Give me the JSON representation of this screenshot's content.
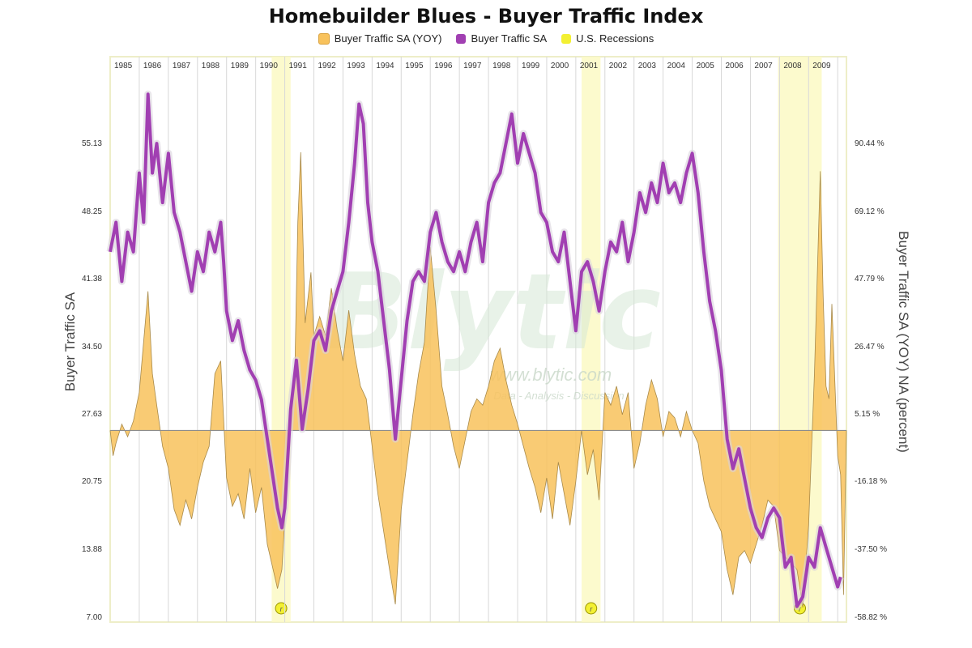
{
  "title": "Homebuilder Blues - Buyer Traffic Index",
  "legend": [
    {
      "label": "Buyer Traffic SA (YOY)",
      "color": "#f8c25c"
    },
    {
      "label": "Buyer Traffic SA",
      "color": "#a13fb2"
    },
    {
      "label": "U.S. Recessions",
      "color": "#f3f032"
    }
  ],
  "watermark": {
    "brand": "Blytic",
    "url": "www.blytic.com",
    "tagline": "Data - Analysis - Discussion"
  },
  "recession_marker": "r",
  "chart_data": {
    "type": "line",
    "title": "Homebuilder Blues - Buyer Traffic Index",
    "x_years": [
      "1985",
      "1986",
      "1987",
      "1988",
      "1989",
      "1990",
      "1991",
      "1992",
      "1993",
      "1994",
      "1995",
      "1996",
      "1997",
      "1998",
      "1999",
      "2000",
      "2001",
      "2002",
      "2003",
      "2004",
      "2005",
      "2006",
      "2007",
      "2008",
      "2009"
    ],
    "xlim": [
      1985,
      2010.3
    ],
    "left_axis": {
      "label": "Buyer Traffic SA",
      "ticks": [
        "55.13",
        "48.25",
        "41.38",
        "34.50",
        "27.63",
        "20.75",
        "13.88",
        "7.00"
      ],
      "ylim": [
        7.0,
        62.0
      ]
    },
    "right_axis": {
      "label": "Buyer Traffic SA (YOY) NA (percent)",
      "ticks": [
        "90.44 %",
        "69.12 %",
        "47.79 %",
        "26.47 %",
        "5.15 %",
        "-16.18 %",
        "-37.50 %",
        "-58.82 %"
      ],
      "ylim": [
        -58.82,
        112.6
      ]
    },
    "recessions": [
      [
        1990.55,
        1991.2
      ],
      [
        2001.2,
        2001.85
      ],
      [
        2007.95,
        2009.45
      ]
    ],
    "series": [
      {
        "name": "Buyer Traffic SA",
        "axis": "left",
        "type": "line",
        "color": "#a13fb2",
        "points": [
          [
            1985.0,
            44
          ],
          [
            1985.2,
            47
          ],
          [
            1985.4,
            41
          ],
          [
            1985.6,
            46
          ],
          [
            1985.8,
            44
          ],
          [
            1986.0,
            52
          ],
          [
            1986.15,
            47
          ],
          [
            1986.3,
            60
          ],
          [
            1986.45,
            52
          ],
          [
            1986.6,
            55
          ],
          [
            1986.8,
            49
          ],
          [
            1987.0,
            54
          ],
          [
            1987.2,
            48
          ],
          [
            1987.4,
            46
          ],
          [
            1987.6,
            43
          ],
          [
            1987.8,
            40
          ],
          [
            1988.0,
            44
          ],
          [
            1988.2,
            42
          ],
          [
            1988.4,
            46
          ],
          [
            1988.6,
            44
          ],
          [
            1988.8,
            47
          ],
          [
            1988.9,
            43
          ],
          [
            1989.0,
            38
          ],
          [
            1989.2,
            35
          ],
          [
            1989.4,
            37
          ],
          [
            1989.6,
            34
          ],
          [
            1989.8,
            32
          ],
          [
            1990.0,
            31
          ],
          [
            1990.2,
            29
          ],
          [
            1990.4,
            25
          ],
          [
            1990.6,
            21
          ],
          [
            1990.75,
            18
          ],
          [
            1990.9,
            16
          ],
          [
            1991.0,
            18
          ],
          [
            1991.2,
            28
          ],
          [
            1991.4,
            33
          ],
          [
            1991.6,
            26
          ],
          [
            1991.8,
            30
          ],
          [
            1992.0,
            35
          ],
          [
            1992.2,
            36
          ],
          [
            1992.4,
            34
          ],
          [
            1992.6,
            38
          ],
          [
            1992.8,
            40
          ],
          [
            1993.0,
            42
          ],
          [
            1993.2,
            47
          ],
          [
            1993.4,
            53
          ],
          [
            1993.55,
            59
          ],
          [
            1993.7,
            57
          ],
          [
            1993.85,
            49
          ],
          [
            1994.0,
            45
          ],
          [
            1994.2,
            42
          ],
          [
            1994.4,
            37
          ],
          [
            1994.6,
            32
          ],
          [
            1994.8,
            25
          ],
          [
            1995.0,
            31
          ],
          [
            1995.2,
            37
          ],
          [
            1995.4,
            41
          ],
          [
            1995.6,
            42
          ],
          [
            1995.8,
            41
          ],
          [
            1996.0,
            46
          ],
          [
            1996.2,
            48
          ],
          [
            1996.4,
            45
          ],
          [
            1996.6,
            43
          ],
          [
            1996.8,
            42
          ],
          [
            1997.0,
            44
          ],
          [
            1997.2,
            42
          ],
          [
            1997.4,
            45
          ],
          [
            1997.6,
            47
          ],
          [
            1997.8,
            43
          ],
          [
            1998.0,
            49
          ],
          [
            1998.2,
            51
          ],
          [
            1998.4,
            52
          ],
          [
            1998.6,
            55
          ],
          [
            1998.8,
            58
          ],
          [
            1999.0,
            53
          ],
          [
            1999.2,
            56
          ],
          [
            1999.4,
            54
          ],
          [
            1999.6,
            52
          ],
          [
            1999.8,
            48
          ],
          [
            2000.0,
            47
          ],
          [
            2000.2,
            44
          ],
          [
            2000.4,
            43
          ],
          [
            2000.6,
            46
          ],
          [
            2000.8,
            41
          ],
          [
            2001.0,
            36
          ],
          [
            2001.2,
            42
          ],
          [
            2001.4,
            43
          ],
          [
            2001.6,
            41
          ],
          [
            2001.8,
            38
          ],
          [
            2002.0,
            42
          ],
          [
            2002.2,
            45
          ],
          [
            2002.4,
            44
          ],
          [
            2002.6,
            47
          ],
          [
            2002.8,
            43
          ],
          [
            2003.0,
            46
          ],
          [
            2003.2,
            50
          ],
          [
            2003.4,
            48
          ],
          [
            2003.6,
            51
          ],
          [
            2003.8,
            49
          ],
          [
            2004.0,
            53
          ],
          [
            2004.2,
            50
          ],
          [
            2004.4,
            51
          ],
          [
            2004.6,
            49
          ],
          [
            2004.8,
            52
          ],
          [
            2005.0,
            54
          ],
          [
            2005.2,
            50
          ],
          [
            2005.4,
            44
          ],
          [
            2005.6,
            39
          ],
          [
            2005.8,
            36
          ],
          [
            2006.0,
            32
          ],
          [
            2006.2,
            25
          ],
          [
            2006.4,
            22
          ],
          [
            2006.6,
            24
          ],
          [
            2006.8,
            21
          ],
          [
            2007.0,
            18
          ],
          [
            2007.2,
            16
          ],
          [
            2007.4,
            15
          ],
          [
            2007.6,
            17
          ],
          [
            2007.8,
            18
          ],
          [
            2008.0,
            17
          ],
          [
            2008.2,
            12
          ],
          [
            2008.4,
            13
          ],
          [
            2008.6,
            8
          ],
          [
            2008.8,
            9
          ],
          [
            2009.0,
            13
          ],
          [
            2009.2,
            12
          ],
          [
            2009.4,
            16
          ],
          [
            2009.6,
            14
          ],
          [
            2009.8,
            12
          ],
          [
            2010.0,
            10
          ],
          [
            2010.1,
            11
          ]
        ]
      },
      {
        "name": "Buyer Traffic SA (YOY)",
        "axis": "right",
        "type": "area",
        "color": "#f8c25c",
        "points": [
          [
            1985.0,
            0
          ],
          [
            1985.1,
            -8
          ],
          [
            1985.2,
            -4
          ],
          [
            1985.4,
            2
          ],
          [
            1985.6,
            -2
          ],
          [
            1985.8,
            3
          ],
          [
            1986.0,
            12
          ],
          [
            1986.15,
            28
          ],
          [
            1986.3,
            44
          ],
          [
            1986.45,
            18
          ],
          [
            1986.6,
            8
          ],
          [
            1986.8,
            -5
          ],
          [
            1987.0,
            -12
          ],
          [
            1987.2,
            -25
          ],
          [
            1987.4,
            -30
          ],
          [
            1987.6,
            -22
          ],
          [
            1987.8,
            -28
          ],
          [
            1988.0,
            -18
          ],
          [
            1988.2,
            -10
          ],
          [
            1988.4,
            -5
          ],
          [
            1988.6,
            18
          ],
          [
            1988.8,
            22
          ],
          [
            1989.0,
            -15
          ],
          [
            1989.2,
            -24
          ],
          [
            1989.4,
            -20
          ],
          [
            1989.6,
            -28
          ],
          [
            1989.8,
            -12
          ],
          [
            1990.0,
            -26
          ],
          [
            1990.2,
            -18
          ],
          [
            1990.4,
            -36
          ],
          [
            1990.6,
            -44
          ],
          [
            1990.75,
            -50
          ],
          [
            1990.9,
            -44
          ],
          [
            1991.0,
            -28
          ],
          [
            1991.2,
            8
          ],
          [
            1991.35,
            20
          ],
          [
            1991.45,
            66
          ],
          [
            1991.55,
            88
          ],
          [
            1991.7,
            34
          ],
          [
            1991.9,
            50
          ],
          [
            1992.0,
            30
          ],
          [
            1992.2,
            36
          ],
          [
            1992.4,
            30
          ],
          [
            1992.6,
            45
          ],
          [
            1992.8,
            32
          ],
          [
            1993.0,
            22
          ],
          [
            1993.2,
            38
          ],
          [
            1993.4,
            24
          ],
          [
            1993.6,
            14
          ],
          [
            1993.8,
            10
          ],
          [
            1994.0,
            -5
          ],
          [
            1994.2,
            -20
          ],
          [
            1994.4,
            -32
          ],
          [
            1994.6,
            -44
          ],
          [
            1994.8,
            -55
          ],
          [
            1995.0,
            -25
          ],
          [
            1995.2,
            -10
          ],
          [
            1995.4,
            5
          ],
          [
            1995.6,
            18
          ],
          [
            1995.8,
            28
          ],
          [
            1996.0,
            58
          ],
          [
            1996.2,
            38
          ],
          [
            1996.4,
            14
          ],
          [
            1996.6,
            5
          ],
          [
            1996.8,
            -5
          ],
          [
            1997.0,
            -12
          ],
          [
            1997.2,
            -3
          ],
          [
            1997.4,
            6
          ],
          [
            1997.6,
            10
          ],
          [
            1997.8,
            8
          ],
          [
            1998.0,
            14
          ],
          [
            1998.2,
            22
          ],
          [
            1998.4,
            26
          ],
          [
            1998.6,
            16
          ],
          [
            1998.8,
            8
          ],
          [
            1999.0,
            2
          ],
          [
            1999.2,
            -5
          ],
          [
            1999.4,
            -12
          ],
          [
            1999.6,
            -18
          ],
          [
            1999.8,
            -26
          ],
          [
            2000.0,
            -15
          ],
          [
            2000.2,
            -28
          ],
          [
            2000.4,
            -10
          ],
          [
            2000.6,
            -20
          ],
          [
            2000.8,
            -30
          ],
          [
            2001.0,
            -16
          ],
          [
            2001.2,
            0
          ],
          [
            2001.4,
            -14
          ],
          [
            2001.6,
            -6
          ],
          [
            2001.8,
            -22
          ],
          [
            2002.0,
            12
          ],
          [
            2002.2,
            8
          ],
          [
            2002.4,
            14
          ],
          [
            2002.6,
            5
          ],
          [
            2002.8,
            12
          ],
          [
            2003.0,
            -12
          ],
          [
            2003.2,
            -4
          ],
          [
            2003.4,
            8
          ],
          [
            2003.6,
            16
          ],
          [
            2003.8,
            10
          ],
          [
            2004.0,
            -2
          ],
          [
            2004.2,
            6
          ],
          [
            2004.4,
            4
          ],
          [
            2004.6,
            -2
          ],
          [
            2004.8,
            6
          ],
          [
            2005.0,
            0
          ],
          [
            2005.2,
            -4
          ],
          [
            2005.4,
            -16
          ],
          [
            2005.6,
            -24
          ],
          [
            2005.8,
            -28
          ],
          [
            2006.0,
            -32
          ],
          [
            2006.2,
            -44
          ],
          [
            2006.4,
            -52
          ],
          [
            2006.6,
            -40
          ],
          [
            2006.8,
            -38
          ],
          [
            2007.0,
            -42
          ],
          [
            2007.2,
            -36
          ],
          [
            2007.4,
            -30
          ],
          [
            2007.6,
            -22
          ],
          [
            2007.8,
            -24
          ],
          [
            2008.0,
            -38
          ],
          [
            2008.2,
            -40
          ],
          [
            2008.4,
            -42
          ],
          [
            2008.6,
            -44
          ],
          [
            2008.8,
            -56
          ],
          [
            2009.0,
            -30
          ],
          [
            2009.2,
            18
          ],
          [
            2009.4,
            82
          ],
          [
            2009.5,
            42
          ],
          [
            2009.6,
            14
          ],
          [
            2009.7,
            10
          ],
          [
            2009.8,
            40
          ],
          [
            2010.0,
            -8
          ],
          [
            2010.1,
            -14
          ],
          [
            2010.2,
            -52
          ],
          [
            2010.3,
            0
          ]
        ]
      }
    ]
  }
}
